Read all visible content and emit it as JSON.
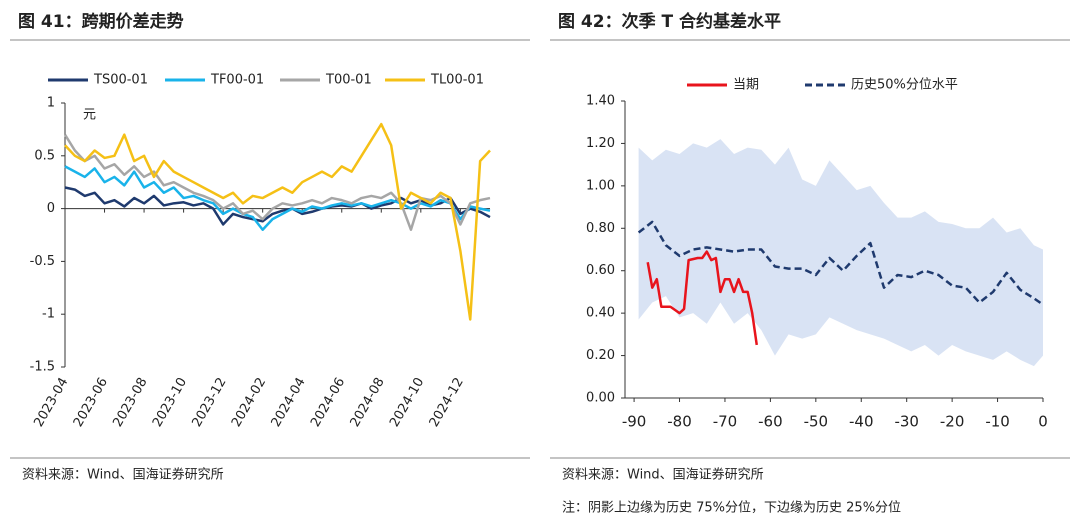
{
  "chart_data": [
    {
      "type": "line",
      "title": "图 41：跨期价差走势",
      "y_unit": "元",
      "categories": [
        "2023-04",
        null,
        null,
        null,
        "2023-06",
        null,
        null,
        null,
        "2023-08",
        null,
        null,
        null,
        "2023-10",
        null,
        null,
        null,
        "2023-12",
        null,
        null,
        null,
        "2024-02",
        null,
        null,
        null,
        "2024-04",
        null,
        null,
        null,
        "2024-06",
        null,
        null,
        null,
        "2024-08",
        null,
        null,
        null,
        "2024-10",
        null,
        null,
        null,
        "2024-12",
        null,
        null,
        null
      ],
      "series": [
        {
          "name": "TS00-01",
          "color": "#1f3a6e",
          "values": [
            0.2,
            0.18,
            0.12,
            0.15,
            0.05,
            0.08,
            0.02,
            0.1,
            0.05,
            0.12,
            0.03,
            0.05,
            0.06,
            0.03,
            0.05,
            0.0,
            -0.15,
            -0.05,
            -0.08,
            -0.1,
            -0.12,
            -0.05,
            -0.02,
            0.0,
            -0.05,
            -0.03,
            0.0,
            0.02,
            0.03,
            0.02,
            0.05,
            0.0,
            0.03,
            0.05,
            0.1,
            0.05,
            0.08,
            0.03,
            0.05,
            0.1,
            -0.05,
            0.0,
            -0.03,
            -0.08
          ]
        },
        {
          "name": "TF00-01",
          "color": "#19b3ea",
          "values": [
            0.4,
            0.35,
            0.3,
            0.38,
            0.25,
            0.3,
            0.22,
            0.35,
            0.2,
            0.25,
            0.15,
            0.2,
            0.1,
            0.12,
            0.08,
            0.05,
            -0.05,
            0.0,
            -0.05,
            -0.08,
            -0.2,
            -0.1,
            -0.05,
            0.0,
            -0.03,
            0.02,
            0.0,
            0.03,
            0.05,
            0.03,
            0.05,
            0.02,
            0.05,
            0.08,
            0.05,
            0.0,
            0.05,
            0.02,
            0.08,
            0.05,
            -0.1,
            0.02,
            0.0,
            -0.02
          ]
        },
        {
          "name": "T00-01",
          "color": "#a6a6a6",
          "values": [
            0.7,
            0.55,
            0.45,
            0.5,
            0.38,
            0.42,
            0.32,
            0.4,
            0.3,
            0.35,
            0.22,
            0.25,
            0.2,
            0.15,
            0.12,
            0.08,
            0.0,
            0.05,
            -0.05,
            -0.02,
            -0.1,
            0.0,
            0.05,
            0.03,
            0.05,
            0.08,
            0.05,
            0.1,
            0.08,
            0.05,
            0.1,
            0.12,
            0.1,
            0.15,
            0.05,
            -0.2,
            0.1,
            0.08,
            0.12,
            0.05,
            -0.15,
            0.05,
            0.08,
            0.1
          ]
        },
        {
          "name": "TL00-01",
          "color": "#f5c016",
          "values": [
            0.6,
            0.5,
            0.45,
            0.55,
            0.48,
            0.5,
            0.7,
            0.45,
            0.5,
            0.3,
            0.45,
            0.35,
            0.3,
            0.25,
            0.2,
            0.15,
            0.1,
            0.15,
            0.05,
            0.12,
            0.1,
            0.15,
            0.2,
            0.15,
            0.25,
            0.3,
            0.35,
            0.3,
            0.4,
            0.35,
            0.5,
            0.65,
            0.8,
            0.6,
            0.0,
            0.15,
            0.1,
            0.05,
            0.15,
            0.1,
            -0.4,
            -1.05,
            0.45,
            0.55
          ]
        }
      ],
      "ylim": [
        -1.5,
        1
      ],
      "yticks": [
        -1.5,
        -1,
        -0.5,
        0,
        0.5,
        1
      ],
      "legend": "top",
      "source": "资料来源：Wind、国海证券研究所"
    },
    {
      "type": "line",
      "title": "图 42：次季 T 合约基差水平",
      "xlim": [
        -92,
        0
      ],
      "xticks": [
        -90,
        -80,
        -70,
        -60,
        -50,
        -40,
        -30,
        -20,
        -10,
        0
      ],
      "ylim": [
        0,
        1.4
      ],
      "yticks": [
        {
          "value": 0,
          "label": "0.00"
        },
        {
          "value": 0.2,
          "label": "0.20"
        },
        {
          "value": 0.4,
          "label": "0.40"
        },
        {
          "value": 0.6,
          "label": "0.60"
        },
        {
          "value": 0.8,
          "label": "0.80"
        },
        {
          "value": 1.0,
          "label": "1.00"
        },
        {
          "value": 1.2,
          "label": "1.20"
        },
        {
          "value": 1.4,
          "label": "1.40"
        }
      ],
      "band": {
        "color": "#d9e3f4",
        "x": [
          -89,
          -86,
          -83,
          -80,
          -77,
          -74,
          -71,
          -68,
          -65,
          -62,
          -59,
          -56,
          -53,
          -50,
          -47,
          -44,
          -41,
          -38,
          -35,
          -32,
          -29,
          -26,
          -23,
          -20,
          -17,
          -14,
          -11,
          -8,
          -5,
          -2,
          0
        ],
        "upper": [
          1.18,
          1.12,
          1.17,
          1.15,
          1.2,
          1.18,
          1.22,
          1.15,
          1.18,
          1.17,
          1.1,
          1.18,
          1.03,
          1.0,
          1.12,
          1.05,
          0.98,
          1.0,
          0.92,
          0.85,
          0.85,
          0.88,
          0.83,
          0.82,
          0.8,
          0.8,
          0.85,
          0.78,
          0.8,
          0.72,
          0.7
        ],
        "lower": [
          0.37,
          0.45,
          0.48,
          0.38,
          0.4,
          0.35,
          0.45,
          0.35,
          0.4,
          0.32,
          0.2,
          0.3,
          0.28,
          0.3,
          0.38,
          0.35,
          0.32,
          0.3,
          0.28,
          0.25,
          0.22,
          0.25,
          0.2,
          0.25,
          0.22,
          0.2,
          0.18,
          0.22,
          0.18,
          0.15,
          0.2
        ]
      },
      "series": [
        {
          "name": "当期",
          "color": "#e8141c",
          "dashed": false,
          "x": [
            -87,
            -86,
            -85,
            -84,
            -82,
            -80,
            -79,
            -78,
            -76,
            -75,
            -74,
            -73,
            -72,
            -71,
            -70,
            -69,
            -68,
            -67,
            -66,
            -65,
            -64,
            -63
          ],
          "values": [
            0.64,
            0.52,
            0.56,
            0.43,
            0.43,
            0.4,
            0.42,
            0.65,
            0.66,
            0.66,
            0.69,
            0.65,
            0.66,
            0.5,
            0.56,
            0.56,
            0.5,
            0.56,
            0.5,
            0.5,
            0.4,
            0.25
          ]
        },
        {
          "name": "历史50%分位水平",
          "color": "#1f3a6e",
          "dashed": true,
          "x": [
            -89,
            -86,
            -83,
            -80,
            -77,
            -74,
            -71,
            -68,
            -65,
            -62,
            -59,
            -56,
            -53,
            -50,
            -47,
            -44,
            -41,
            -38,
            -35,
            -32,
            -29,
            -26,
            -23,
            -20,
            -17,
            -14,
            -11,
            -8,
            -5,
            -2,
            0
          ],
          "values": [
            0.78,
            0.83,
            0.72,
            0.67,
            0.7,
            0.71,
            0.7,
            0.69,
            0.7,
            0.7,
            0.62,
            0.61,
            0.61,
            0.58,
            0.66,
            0.6,
            0.67,
            0.73,
            0.52,
            0.58,
            0.57,
            0.6,
            0.58,
            0.53,
            0.52,
            0.45,
            0.5,
            0.59,
            0.51,
            0.47,
            0.44
          ]
        }
      ],
      "legend": "top",
      "source": "资料来源：Wind、国海证券研究所",
      "note": "注：阴影上边缘为历史 75%分位，下边缘为历史 25%分位"
    }
  ]
}
